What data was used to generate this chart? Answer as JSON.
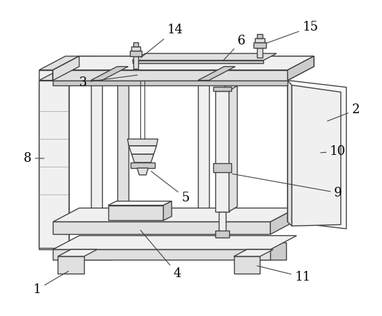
{
  "background_color": "#ffffff",
  "line_color": "#404040",
  "line_width": 1.0,
  "label_fontsize": 13,
  "face_light": "#f0f0f0",
  "face_mid": "#e0e0e0",
  "face_dark": "#cccccc",
  "face_very_light": "#f8f8f8"
}
